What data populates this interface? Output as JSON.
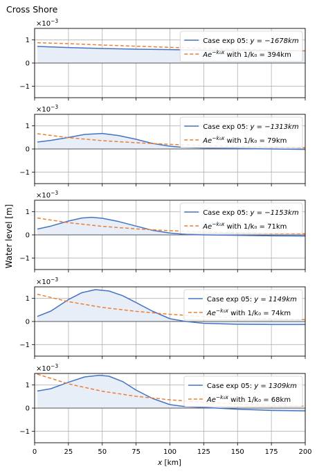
{
  "figure": {
    "title": "Cross Shore",
    "ylabel": "Water level [m]",
    "xlabel_main": "x",
    "xlabel_unit": " [km]",
    "exponent_label_base": "×10",
    "exponent_label_power": "−3"
  },
  "colors": {
    "model": "#4472c4",
    "fit": "#ed7d31",
    "fill": "#e8eef8",
    "grid": "#b0b0b0",
    "zero_line": "#555555"
  },
  "chart_data": [
    {
      "type": "line",
      "xlim": [
        0,
        200
      ],
      "ylim": [
        -1.5,
        1.5
      ],
      "xticks": [
        0,
        25,
        50,
        75,
        100,
        125,
        150,
        175,
        200
      ],
      "yticks": [
        -1,
        0,
        1
      ],
      "ytick_labels": [
        "−1",
        "0",
        "1"
      ],
      "show_xtick_labels": false,
      "legend": {
        "placement": "upper-right",
        "model_prefix": "Case exp 05: ",
        "model_eq": "y = −1678km",
        "fit_main": "Ae",
        "fit_sup": "−k₀x",
        "fit_suffix": " with 1/k₀ = 394km"
      },
      "series": [
        {
          "role": "model",
          "x": [
            2,
            25,
            50,
            75,
            100,
            125,
            150,
            175,
            200
          ],
          "values": [
            0.72,
            0.67,
            0.63,
            0.6,
            0.58,
            0.56,
            0.55,
            0.54,
            0.53
          ]
        },
        {
          "role": "fit",
          "x": [
            2,
            25,
            50,
            75,
            100,
            125,
            150,
            175,
            200
          ],
          "values": [
            0.88,
            0.84,
            0.78,
            0.73,
            0.68,
            0.64,
            0.6,
            0.56,
            0.53
          ]
        }
      ]
    },
    {
      "type": "line",
      "xlim": [
        0,
        200
      ],
      "ylim": [
        -1.5,
        1.5
      ],
      "xticks": [
        0,
        25,
        50,
        75,
        100,
        125,
        150,
        175,
        200
      ],
      "yticks": [
        -1,
        0,
        1
      ],
      "ytick_labels": [
        "−1",
        "0",
        "1"
      ],
      "show_xtick_labels": false,
      "legend": {
        "placement": "upper-right",
        "model_prefix": "Case exp 05: ",
        "model_eq": "y = −1313km",
        "fit_main": "Ae",
        "fit_sup": "−k₀x",
        "fit_suffix": " with 1/k₀ = 79km"
      },
      "series": [
        {
          "role": "model",
          "x": [
            2,
            12,
            25,
            37,
            50,
            62,
            75,
            87,
            100,
            110,
            125,
            150,
            175,
            200
          ],
          "values": [
            0.3,
            0.37,
            0.5,
            0.63,
            0.67,
            0.58,
            0.42,
            0.24,
            0.12,
            0.07,
            0.04,
            0.02,
            0.0,
            -0.02
          ]
        },
        {
          "role": "fit",
          "x": [
            2,
            25,
            50,
            75,
            100,
            125,
            150,
            175,
            200
          ],
          "values": [
            0.66,
            0.49,
            0.36,
            0.27,
            0.2,
            0.15,
            0.11,
            0.08,
            0.06
          ]
        }
      ]
    },
    {
      "type": "line",
      "xlim": [
        0,
        200
      ],
      "ylim": [
        -1.5,
        1.5
      ],
      "xticks": [
        0,
        25,
        50,
        75,
        100,
        125,
        150,
        175,
        200
      ],
      "yticks": [
        -1,
        0,
        1
      ],
      "ytick_labels": [
        "−1",
        "0",
        "1"
      ],
      "show_xtick_labels": false,
      "legend": {
        "placement": "upper-right",
        "model_prefix": "Case exp 05: ",
        "model_eq": "y = −1153km",
        "fit_main": "Ae",
        "fit_sup": "−k₀x",
        "fit_suffix": " with 1/k₀ = 71km"
      },
      "series": [
        {
          "role": "model",
          "x": [
            2,
            12,
            25,
            35,
            42,
            50,
            62,
            75,
            87,
            100,
            112,
            125,
            150,
            175,
            200
          ],
          "values": [
            0.25,
            0.38,
            0.6,
            0.73,
            0.76,
            0.72,
            0.58,
            0.38,
            0.2,
            0.08,
            0.02,
            0.0,
            -0.02,
            -0.04,
            -0.05
          ]
        },
        {
          "role": "fit",
          "x": [
            2,
            25,
            50,
            75,
            100,
            125,
            150,
            175,
            200
          ],
          "values": [
            0.73,
            0.53,
            0.37,
            0.26,
            0.18,
            0.13,
            0.09,
            0.06,
            0.05
          ]
        }
      ]
    },
    {
      "type": "line",
      "xlim": [
        0,
        200
      ],
      "ylim": [
        -1.5,
        1.5
      ],
      "xticks": [
        0,
        25,
        50,
        75,
        100,
        125,
        150,
        175,
        200
      ],
      "yticks": [
        -1,
        0,
        1
      ],
      "ytick_labels": [
        "−1",
        "0",
        "1"
      ],
      "show_xtick_labels": false,
      "legend": {
        "placement": "upper-right",
        "model_prefix": "Case exp 05: ",
        "model_eq": "y = 1149km",
        "fit_main": "Ae",
        "fit_sup": "−k₀x",
        "fit_suffix": " with 1/k₀ = 74km"
      },
      "series": [
        {
          "role": "model",
          "x": [
            2,
            12,
            25,
            35,
            45,
            55,
            65,
            75,
            87,
            100,
            112,
            125,
            150,
            175,
            200
          ],
          "values": [
            0.22,
            0.45,
            0.95,
            1.25,
            1.38,
            1.32,
            1.12,
            0.82,
            0.45,
            0.12,
            0.0,
            -0.08,
            -0.12,
            -0.13,
            -0.13
          ]
        },
        {
          "role": "fit",
          "x": [
            2,
            25,
            50,
            75,
            100,
            125,
            150,
            175,
            200
          ],
          "values": [
            1.18,
            0.86,
            0.61,
            0.44,
            0.31,
            0.22,
            0.16,
            0.12,
            0.08
          ]
        }
      ]
    },
    {
      "type": "line",
      "xlim": [
        0,
        200
      ],
      "ylim": [
        -1.5,
        1.5
      ],
      "xticks": [
        0,
        25,
        50,
        75,
        100,
        125,
        150,
        175,
        200
      ],
      "yticks": [
        -1,
        0,
        1
      ],
      "ytick_labels": [
        "−1",
        "0",
        "1"
      ],
      "show_xtick_labels": true,
      "xtick_labels": [
        "0",
        "25",
        "50",
        "75",
        "100",
        "125",
        "150",
        "175",
        "200"
      ],
      "legend": {
        "placement": "upper-right",
        "model_prefix": "Case exp 05: ",
        "model_eq": "y = 1309km",
        "fit_main": "Ae",
        "fit_sup": "−k₀x",
        "fit_suffix": " with 1/k₀ = 68km"
      },
      "series": [
        {
          "role": "model",
          "x": [
            2,
            12,
            25,
            37,
            48,
            55,
            65,
            75,
            87,
            100,
            112,
            125,
            150,
            175,
            200
          ],
          "values": [
            0.74,
            0.84,
            1.12,
            1.35,
            1.42,
            1.38,
            1.15,
            0.78,
            0.42,
            0.15,
            0.06,
            0.03,
            -0.05,
            -0.1,
            -0.12
          ]
        },
        {
          "role": "fit",
          "x": [
            2,
            25,
            50,
            75,
            100,
            125,
            150,
            175,
            200
          ],
          "values": [
            1.47,
            1.05,
            0.73,
            0.51,
            0.36,
            0.25,
            0.17,
            0.12,
            0.08
          ]
        }
      ]
    }
  ]
}
